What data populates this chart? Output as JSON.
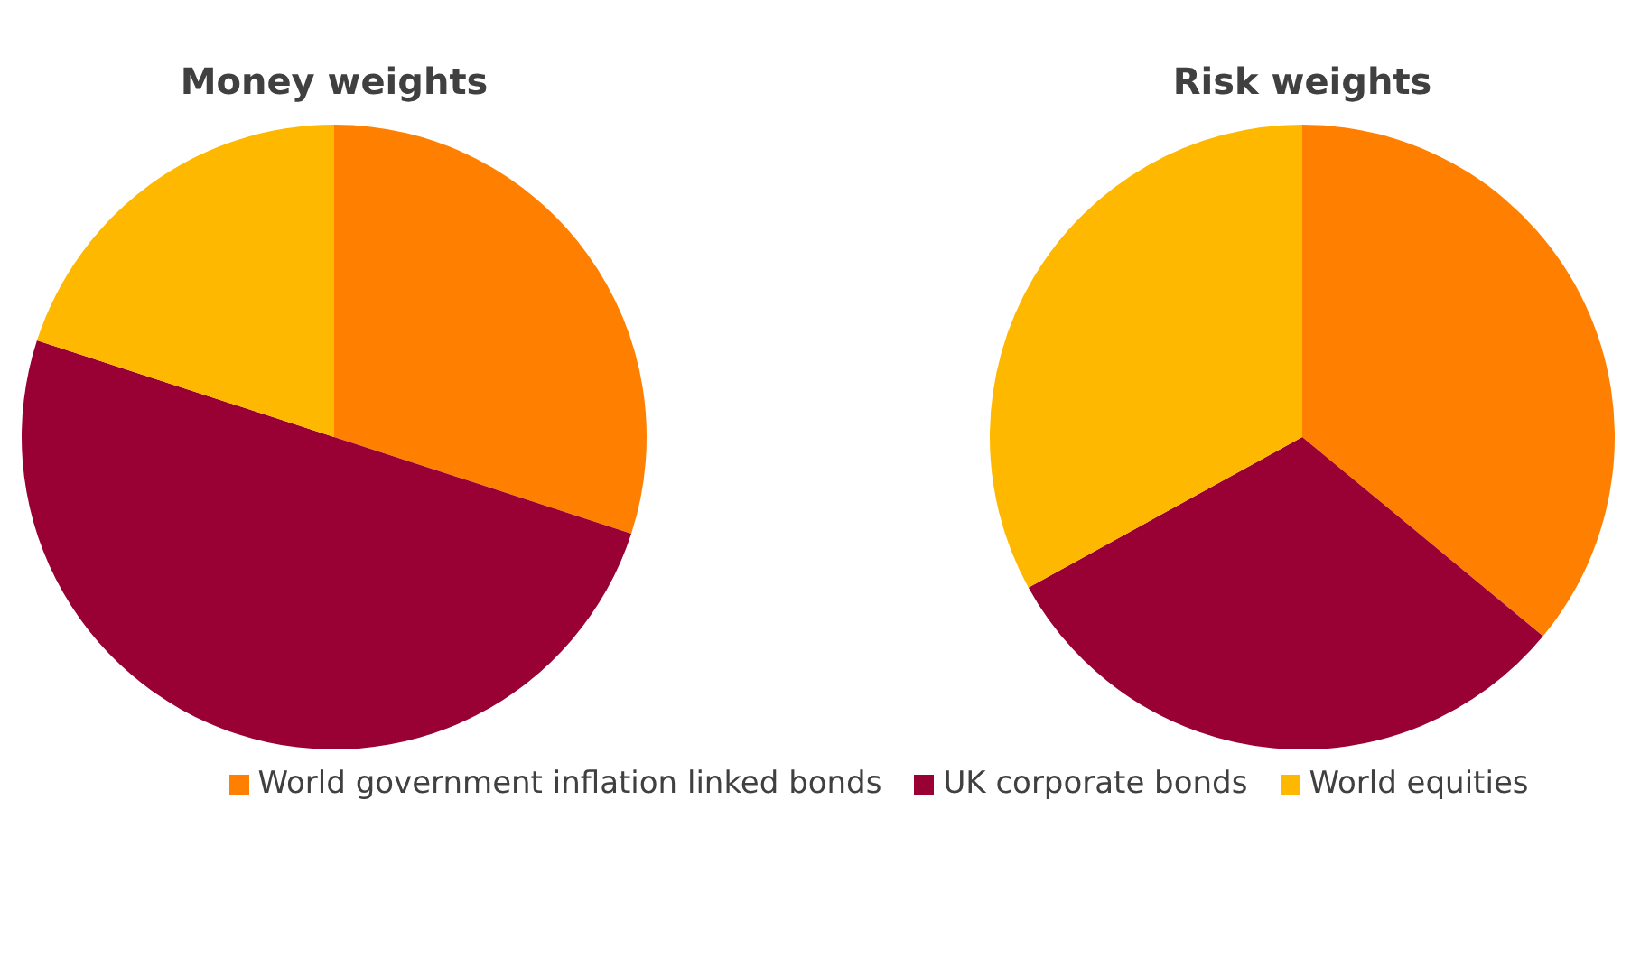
{
  "chart_data": [
    {
      "type": "pie",
      "title": "Money weights",
      "categories": [
        null,
        null,
        null
      ],
      "values": [
        30,
        50,
        20
      ],
      "colors": [
        "#ff8000",
        "#990033",
        "#ffb800"
      ],
      "legend": false
    },
    {
      "type": "pie",
      "title": "Risk weights",
      "categories": [
        "World government inflation linked bonds",
        "UK corporate bonds",
        "World equities"
      ],
      "values": [
        36,
        31,
        33
      ],
      "colors": [
        "#ff8000",
        "#990033",
        "#ffb800"
      ],
      "legend": "bottom"
    }
  ]
}
